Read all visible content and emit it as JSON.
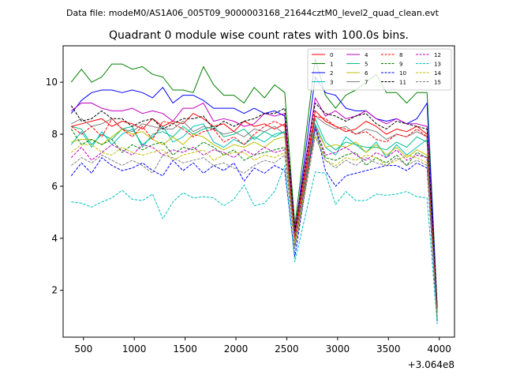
{
  "chart_data": {
    "type": "line",
    "suptitle": "Data file: modeM0/AS1A06_005T09_9000003168_21644cztM0_level2_quad_clean.evt",
    "title": "Quadrant 0 module wise count rates with 100.0s bins.",
    "xlabel": "",
    "ylabel": "",
    "x_offset_label": "+3.064e8",
    "xlim": [
      300,
      4150
    ],
    "ylim": [
      0.2,
      11.4
    ],
    "x_ticks": [
      500,
      1000,
      1500,
      2000,
      2500,
      3000,
      3500,
      4000
    ],
    "y_ticks": [
      2,
      4,
      6,
      8,
      10
    ],
    "grid": false,
    "legend_position": "top-right",
    "legend_columns": 4,
    "x": [
      380,
      480,
      580,
      680,
      780,
      880,
      980,
      1080,
      1180,
      1280,
      1380,
      1480,
      1580,
      1680,
      1780,
      1880,
      1980,
      2080,
      2180,
      2280,
      2380,
      2480,
      2580,
      2780,
      2880,
      2980,
      3080,
      3180,
      3280,
      3380,
      3480,
      3580,
      3680,
      3780,
      3880,
      3980
    ],
    "series": [
      {
        "name": "0",
        "color": "#ff0000",
        "dash": false,
        "values": [
          8.3,
          8.4,
          8.5,
          8.6,
          8.3,
          8.5,
          8.4,
          8.2,
          8.6,
          8.3,
          8.5,
          8.4,
          8.8,
          8.6,
          8.3,
          8.4,
          8.1,
          8.5,
          8.3,
          8.4,
          8.2,
          8.4,
          4.2,
          8.9,
          8.5,
          8.3,
          8.1,
          8.2,
          8.5,
          8.3,
          8.0,
          8.2,
          8.1,
          8.3,
          8.0,
          1.2
        ]
      },
      {
        "name": "1",
        "color": "#008000",
        "dash": false,
        "values": [
          10.0,
          10.5,
          10.0,
          10.2,
          10.7,
          10.7,
          10.5,
          10.6,
          10.3,
          10.2,
          9.7,
          9.7,
          9.6,
          10.6,
          9.9,
          9.5,
          9.5,
          9.2,
          9.8,
          9.4,
          9.9,
          9.6,
          4.5,
          10.9,
          9.5,
          9.0,
          9.5,
          9.7,
          10.0,
          10.3,
          9.6,
          9.6,
          9.2,
          9.6,
          9.6,
          1.4
        ]
      },
      {
        "name": "2",
        "color": "#0000ff",
        "dash": false,
        "values": [
          8.8,
          9.3,
          9.6,
          9.7,
          9.7,
          9.6,
          9.7,
          9.6,
          9.4,
          9.8,
          9.2,
          9.5,
          9.5,
          9.3,
          9.0,
          9.0,
          9.0,
          8.8,
          9.0,
          8.8,
          8.9,
          8.7,
          4.2,
          10.2,
          9.6,
          9.5,
          9.0,
          8.9,
          8.9,
          8.6,
          8.5,
          8.6,
          8.4,
          8.6,
          9.2,
          1.3
        ]
      },
      {
        "name": "3",
        "color": "#00bfbf",
        "dash": false,
        "values": [
          7.6,
          8.1,
          7.5,
          8.1,
          7.6,
          8.0,
          8.2,
          7.6,
          7.9,
          8.3,
          7.7,
          7.9,
          8.3,
          8.4,
          7.7,
          7.5,
          7.8,
          7.6,
          7.9,
          7.7,
          8.0,
          8.1,
          3.9,
          8.4,
          7.5,
          7.2,
          7.9,
          7.6,
          7.3,
          7.7,
          7.1,
          7.6,
          7.2,
          7.5,
          7.8,
          1.1
        ]
      },
      {
        "name": "4",
        "color": "#bf00bf",
        "dash": false,
        "values": [
          8.9,
          9.2,
          9.2,
          9.0,
          8.9,
          8.9,
          9.0,
          8.8,
          8.9,
          8.8,
          8.5,
          9.0,
          9.0,
          9.2,
          8.5,
          8.6,
          8.5,
          8.3,
          8.4,
          8.8,
          8.7,
          8.8,
          4.3,
          9.4,
          8.7,
          8.9,
          8.6,
          8.7,
          8.9,
          8.6,
          8.4,
          8.6,
          8.4,
          8.4,
          8.3,
          1.3
        ]
      },
      {
        "name": "5",
        "color": "#00c08a",
        "dash": false,
        "values": [
          8.3,
          8.2,
          7.6,
          8.0,
          7.8,
          8.2,
          8.3,
          7.5,
          8.0,
          8.1,
          7.9,
          8.3,
          8.0,
          8.2,
          8.3,
          7.9,
          8.0,
          8.2,
          7.8,
          8.1,
          7.9,
          8.1,
          4.0,
          8.6,
          7.7,
          7.4,
          7.7,
          7.6,
          7.5,
          7.5,
          7.4,
          7.7,
          7.5,
          7.9,
          7.7,
          1.0
        ]
      },
      {
        "name": "6",
        "color": "#bfbf00",
        "dash": false,
        "values": [
          7.7,
          7.8,
          7.8,
          7.6,
          7.9,
          8.2,
          8.0,
          8.1,
          7.8,
          7.6,
          7.9,
          7.6,
          8.0,
          7.9,
          7.6,
          7.4,
          7.6,
          7.5,
          7.7,
          7.5,
          7.8,
          7.9,
          3.8,
          8.3,
          7.5,
          7.6,
          7.5,
          7.7,
          7.3,
          7.6,
          7.2,
          7.5,
          7.1,
          7.4,
          7.2,
          1.0
        ]
      },
      {
        "name": "7",
        "color": "#808080",
        "dash": false,
        "values": [
          8.4,
          8.6,
          8.3,
          8.4,
          8.6,
          8.2,
          8.1,
          8.4,
          8.3,
          8.2,
          8.2,
          8.5,
          8.1,
          8.3,
          8.2,
          8.0,
          8.1,
          7.9,
          8.2,
          8.1,
          8.3,
          8.0,
          4.0,
          8.7,
          8.4,
          8.2,
          8.3,
          8.0,
          8.2,
          8.1,
          7.8,
          8.0,
          7.9,
          8.1,
          7.9,
          1.2
        ]
      },
      {
        "name": "8",
        "color": "#ff0000",
        "dash": true,
        "values": [
          8.3,
          8.0,
          8.3,
          7.9,
          8.6,
          8.2,
          7.9,
          8.3,
          7.8,
          8.5,
          8.4,
          8.2,
          7.9,
          8.1,
          8.2,
          7.7,
          7.9,
          7.6,
          8.0,
          8.3,
          8.5,
          8.3,
          4.0,
          8.7,
          8.6,
          8.3,
          8.2,
          8.0,
          8.1,
          7.8,
          7.7,
          8.0,
          7.9,
          8.2,
          7.9,
          1.1
        ]
      },
      {
        "name": "9",
        "color": "#008000",
        "dash": true,
        "values": [
          8.2,
          7.6,
          7.8,
          7.6,
          7.8,
          7.3,
          7.6,
          7.4,
          7.6,
          7.7,
          7.2,
          7.5,
          7.4,
          7.7,
          7.5,
          7.2,
          7.4,
          7.0,
          7.2,
          7.3,
          7.4,
          7.5,
          3.7,
          8.2,
          7.1,
          7.0,
          7.2,
          7.3,
          6.8,
          7.1,
          6.9,
          7.2,
          6.8,
          7.3,
          7.1,
          0.9
        ]
      },
      {
        "name": "10",
        "color": "#0000ff",
        "dash": true,
        "values": [
          6.4,
          6.9,
          6.5,
          7.1,
          6.8,
          6.6,
          6.7,
          6.9,
          6.6,
          6.4,
          7.0,
          6.6,
          6.9,
          6.5,
          6.8,
          6.6,
          6.9,
          6.2,
          6.7,
          6.5,
          6.8,
          6.6,
          3.3,
          8.3,
          6.6,
          6.0,
          6.4,
          6.5,
          6.6,
          6.7,
          6.8,
          6.8,
          6.6,
          6.9,
          6.7,
          0.8
        ]
      },
      {
        "name": "11",
        "color": "#000000",
        "dash": true,
        "values": [
          9.1,
          8.5,
          8.6,
          8.9,
          8.6,
          8.6,
          8.3,
          8.5,
          8.6,
          8.2,
          8.4,
          8.6,
          8.6,
          8.7,
          8.2,
          8.5,
          8.3,
          8.5,
          8.6,
          8.8,
          8.8,
          9.0,
          4.3,
          9.2,
          8.8,
          8.7,
          8.5,
          8.7,
          8.8,
          8.4,
          8.2,
          8.5,
          8.4,
          8.3,
          8.2,
          1.3
        ]
      },
      {
        "name": "12",
        "color": "#bf00bf",
        "dash": true,
        "values": [
          7.1,
          7.5,
          7.0,
          7.3,
          7.6,
          7.4,
          7.2,
          7.6,
          7.5,
          7.2,
          7.4,
          7.3,
          7.5,
          7.2,
          7.4,
          7.3,
          7.1,
          7.4,
          7.2,
          7.5,
          7.3,
          7.4,
          3.8,
          8.3,
          7.2,
          7.3,
          7.5,
          7.2,
          7.0,
          7.3,
          7.1,
          7.4,
          7.0,
          7.2,
          7.1,
          1.0
        ]
      },
      {
        "name": "13",
        "color": "#00bfbf",
        "dash": true,
        "values": [
          5.4,
          5.35,
          5.2,
          5.4,
          5.55,
          5.85,
          5.5,
          5.45,
          5.7,
          4.75,
          5.4,
          5.75,
          5.55,
          5.6,
          5.55,
          5.25,
          5.5,
          6.05,
          5.25,
          5.35,
          5.8,
          6.8,
          3.1,
          6.55,
          6.5,
          5.3,
          5.8,
          5.45,
          5.45,
          5.7,
          5.65,
          5.7,
          5.8,
          5.6,
          5.55,
          0.7
        ]
      },
      {
        "name": "14",
        "color": "#bfbf00",
        "dash": true,
        "values": [
          7.3,
          7.6,
          7.6,
          7.3,
          7.2,
          7.5,
          7.3,
          7.2,
          7.3,
          7.4,
          7.0,
          7.2,
          7.3,
          7.4,
          7.0,
          7.2,
          7.3,
          7.3,
          7.0,
          7.2,
          7.1,
          7.3,
          3.8,
          8.0,
          7.0,
          6.8,
          7.1,
          7.0,
          7.2,
          7.1,
          6.8,
          7.0,
          7.2,
          7.1,
          6.9,
          1.0
        ]
      },
      {
        "name": "15",
        "color": "#808080",
        "dash": true,
        "values": [
          6.8,
          7.1,
          6.9,
          7.2,
          7.0,
          6.8,
          7.0,
          6.8,
          6.5,
          7.2,
          7.1,
          6.9,
          7.0,
          7.1,
          6.8,
          6.9,
          6.7,
          6.5,
          6.8,
          7.0,
          6.9,
          7.2,
          3.6,
          7.9,
          7.0,
          6.7,
          7.0,
          6.8,
          7.1,
          6.9,
          6.8,
          7.1,
          6.8,
          7.0,
          6.8,
          0.9
        ]
      }
    ]
  }
}
